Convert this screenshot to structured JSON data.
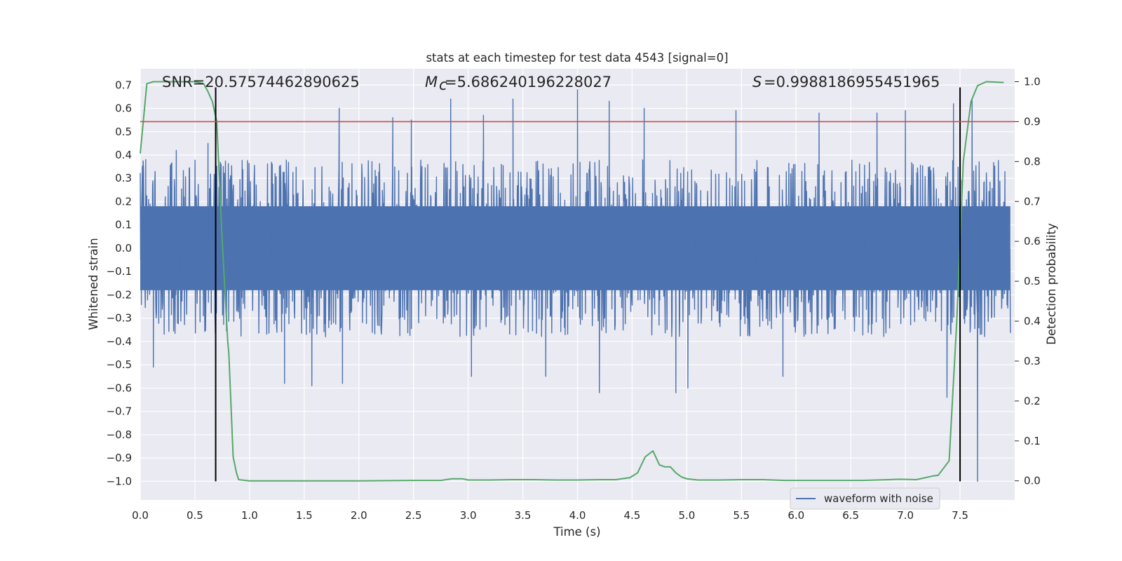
{
  "chart_data": {
    "type": "line",
    "title": "stats at each timestep for test data 4543 [signal=0]",
    "xlabel": "Time (s)",
    "ylabel": "Whitened strain",
    "y2label": "Detection probability",
    "xlim": [
      0,
      8
    ],
    "ylim": [
      -1.08,
      0.77
    ],
    "y2lim": [
      -0.048,
      1.0325
    ],
    "xticks": [
      "0.0",
      "0.5",
      "1.0",
      "1.5",
      "2.0",
      "2.5",
      "3.0",
      "3.5",
      "4.0",
      "4.5",
      "5.0",
      "5.5",
      "6.0",
      "6.5",
      "7.0",
      "7.5"
    ],
    "yticks": [
      "−1.0",
      "−0.9",
      "−0.8",
      "−0.7",
      "−0.6",
      "−0.5",
      "−0.4",
      "−0.3",
      "−0.2",
      "−0.1",
      "0.0",
      "0.1",
      "0.2",
      "0.3",
      "0.4",
      "0.5",
      "0.6",
      "0.7"
    ],
    "y2ticks": [
      "0.0",
      "0.1",
      "0.2",
      "0.3",
      "0.4",
      "0.5",
      "0.6",
      "0.7",
      "0.8",
      "0.9",
      "1.0"
    ],
    "annotations": {
      "snr": "SNR=20.57574462890625",
      "mc": "=5.686240196228027",
      "s": "=0.9988186955451965"
    },
    "threshold": {
      "axis": "right",
      "value": 0.9,
      "color": "#c44e52"
    },
    "vlines": {
      "x": [
        0.69,
        7.5
      ],
      "y_from": -1.0,
      "y_to": 0.69,
      "color": "#000000"
    },
    "legend": {
      "position": "lower-right",
      "entries": [
        "waveform with noise"
      ]
    },
    "grid": true,
    "background": "#eaeaf2",
    "series": [
      {
        "name": "waveform with noise",
        "axis": "left",
        "color": "#4c72b0",
        "kind": "noise",
        "band": 0.18,
        "typical_peak": 0.38,
        "spikes": [
          {
            "x": 0.05,
            "y": 0.38
          },
          {
            "x": 0.12,
            "y": -0.51
          },
          {
            "x": 0.33,
            "y": 0.42
          },
          {
            "x": 0.62,
            "y": 0.45
          },
          {
            "x": 1.32,
            "y": -0.58
          },
          {
            "x": 1.57,
            "y": -0.59
          },
          {
            "x": 1.82,
            "y": 0.6
          },
          {
            "x": 1.85,
            "y": -0.58
          },
          {
            "x": 2.31,
            "y": 0.56
          },
          {
            "x": 2.48,
            "y": 0.55
          },
          {
            "x": 2.84,
            "y": 0.64
          },
          {
            "x": 3.03,
            "y": -0.55
          },
          {
            "x": 3.14,
            "y": 0.57
          },
          {
            "x": 3.41,
            "y": 0.64
          },
          {
            "x": 3.71,
            "y": -0.55
          },
          {
            "x": 4.0,
            "y": 0.68
          },
          {
            "x": 4.2,
            "y": -0.62
          },
          {
            "x": 4.29,
            "y": 0.63
          },
          {
            "x": 4.61,
            "y": 0.6
          },
          {
            "x": 4.9,
            "y": -0.62
          },
          {
            "x": 5.01,
            "y": -0.6
          },
          {
            "x": 5.45,
            "y": 0.59
          },
          {
            "x": 5.88,
            "y": -0.55
          },
          {
            "x": 6.21,
            "y": 0.58
          },
          {
            "x": 6.74,
            "y": 0.58
          },
          {
            "x": 7.0,
            "y": 0.59
          },
          {
            "x": 7.38,
            "y": -0.64
          },
          {
            "x": 7.44,
            "y": 0.62
          },
          {
            "x": 7.61,
            "y": 0.64
          },
          {
            "x": 7.66,
            "y": -1.0
          }
        ]
      },
      {
        "name": "",
        "axis": "right",
        "color": "#55a868",
        "kind": "line",
        "x": [
          0.0,
          0.06,
          0.12,
          0.2,
          0.3,
          0.4,
          0.5,
          0.58,
          0.62,
          0.66,
          0.7,
          0.75,
          0.8,
          0.81,
          0.85,
          0.88,
          0.9,
          1.0,
          1.5,
          2.0,
          2.5,
          2.75,
          2.85,
          2.95,
          3.0,
          3.2,
          3.4,
          3.6,
          3.8,
          4.0,
          4.2,
          4.35,
          4.48,
          4.55,
          4.62,
          4.69,
          4.75,
          4.8,
          4.85,
          4.9,
          4.95,
          5.0,
          5.1,
          5.3,
          5.5,
          5.7,
          5.9,
          6.2,
          6.6,
          6.85,
          6.95,
          7.1,
          7.25,
          7.3,
          7.4,
          7.47,
          7.53,
          7.6,
          7.66,
          7.74,
          7.9
        ],
        "y": [
          0.82,
          0.995,
          1.0,
          1.0,
          1.0,
          1.0,
          1.0,
          0.995,
          0.975,
          0.95,
          0.9,
          0.6,
          0.35,
          0.32,
          0.06,
          0.02,
          0.003,
          0.0,
          0.0,
          0.0,
          0.001,
          0.001,
          0.005,
          0.005,
          0.002,
          0.002,
          0.003,
          0.003,
          0.002,
          0.002,
          0.003,
          0.003,
          0.008,
          0.02,
          0.06,
          0.075,
          0.04,
          0.035,
          0.035,
          0.02,
          0.01,
          0.005,
          0.002,
          0.002,
          0.003,
          0.003,
          0.001,
          0.001,
          0.001,
          0.003,
          0.004,
          0.003,
          0.012,
          0.014,
          0.05,
          0.4,
          0.8,
          0.95,
          0.99,
          1.0,
          0.998
        ]
      }
    ]
  }
}
